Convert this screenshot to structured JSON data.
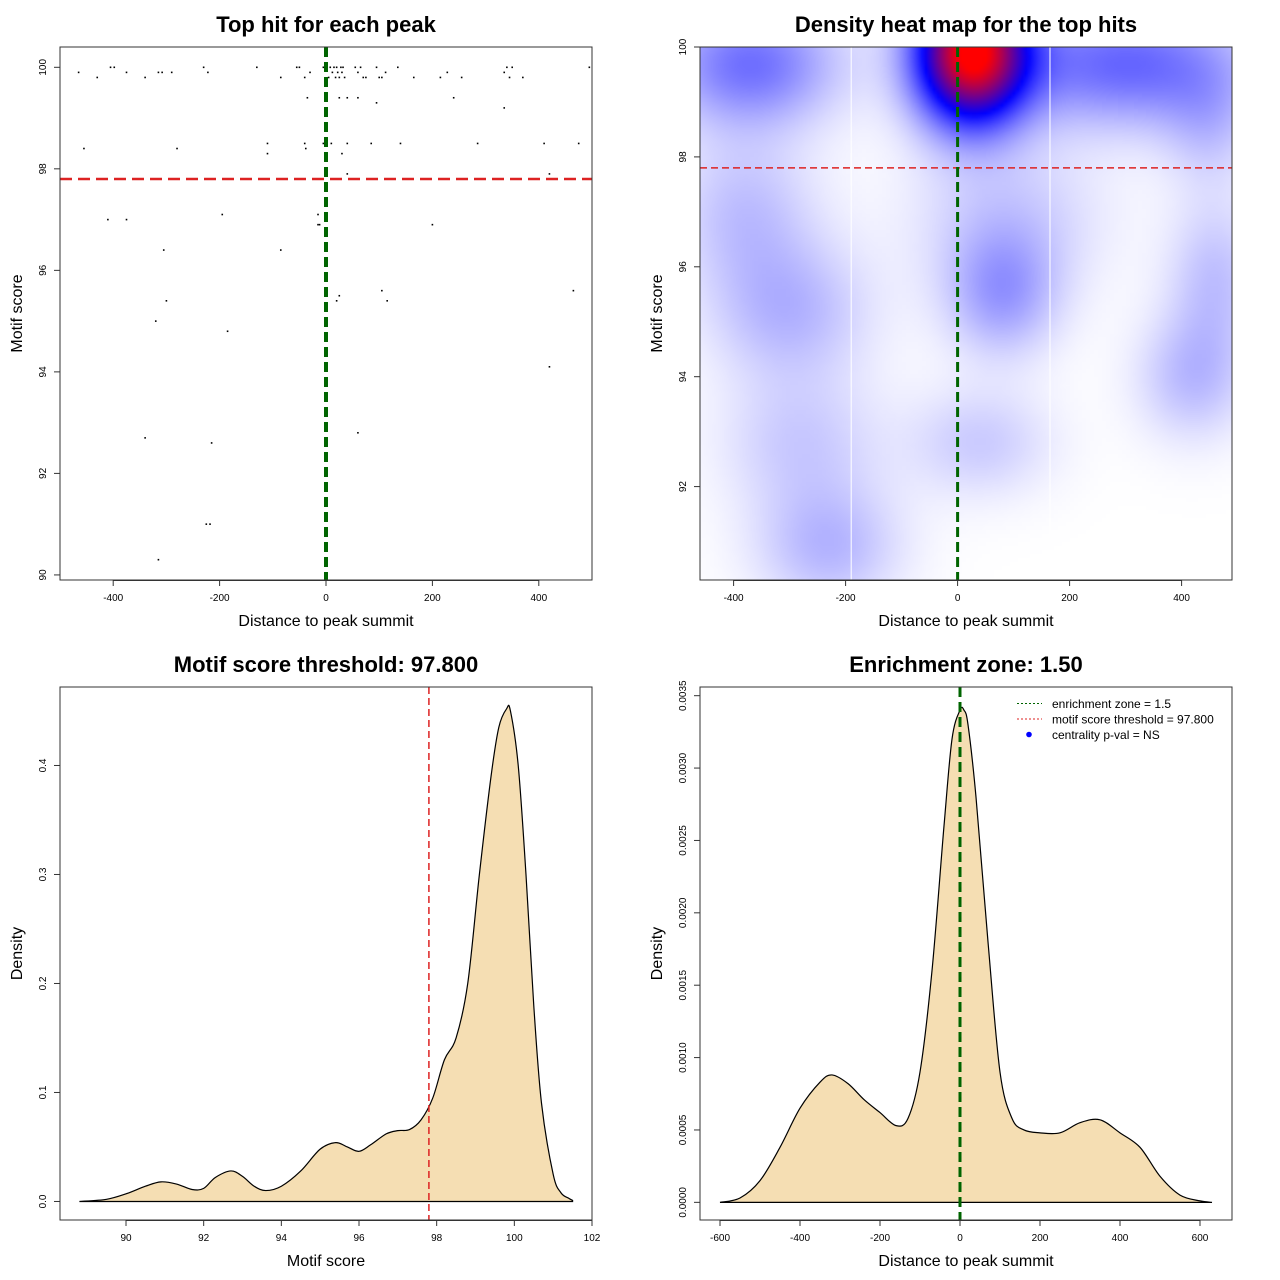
{
  "chart_data": [
    {
      "type": "scatter",
      "title": "Top hit for each peak",
      "xlabel": "Distance to peak summit",
      "ylabel": "Motif score",
      "xlim": [
        -500,
        500
      ],
      "ylim": [
        89.9,
        100.4
      ],
      "xticks": [
        -400,
        -200,
        0,
        200,
        400
      ],
      "yticks": [
        90,
        92,
        94,
        96,
        98,
        100
      ],
      "vlines": [
        {
          "x": 0,
          "color": "#006400",
          "style": "dashed"
        }
      ],
      "hlines": [
        {
          "y": 97.8,
          "color": "#dd2222",
          "style": "dashed"
        }
      ],
      "points": [
        [
          -465,
          99.9
        ],
        [
          -430,
          99.8
        ],
        [
          -405,
          100
        ],
        [
          -398,
          100
        ],
        [
          -375,
          99.9
        ],
        [
          -340,
          99.8
        ],
        [
          -315,
          99.9
        ],
        [
          -308,
          99.9
        ],
        [
          -290,
          99.9
        ],
        [
          -230,
          100
        ],
        [
          -222,
          99.9
        ],
        [
          -130,
          100
        ],
        [
          -85,
          99.8
        ],
        [
          -55,
          100
        ],
        [
          -50,
          100
        ],
        [
          -40,
          99.8
        ],
        [
          -30,
          99.9
        ],
        [
          -5,
          100
        ],
        [
          0,
          100
        ],
        [
          5,
          99.8
        ],
        [
          8,
          100
        ],
        [
          12,
          99.9
        ],
        [
          15,
          100
        ],
        [
          18,
          99.8
        ],
        [
          20,
          100
        ],
        [
          22,
          99.9
        ],
        [
          25,
          99.8
        ],
        [
          28,
          100
        ],
        [
          30,
          99.9
        ],
        [
          32,
          100
        ],
        [
          35,
          99.8
        ],
        [
          55,
          100
        ],
        [
          60,
          99.9
        ],
        [
          65,
          100
        ],
        [
          70,
          99.8
        ],
        [
          75,
          99.8
        ],
        [
          95,
          100
        ],
        [
          100,
          99.8
        ],
        [
          105,
          99.8
        ],
        [
          112,
          99.9
        ],
        [
          135,
          100
        ],
        [
          165,
          99.8
        ],
        [
          215,
          99.8
        ],
        [
          228,
          99.9
        ],
        [
          255,
          99.8
        ],
        [
          335,
          99.9
        ],
        [
          340,
          100
        ],
        [
          345,
          99.8
        ],
        [
          350,
          100
        ],
        [
          370,
          99.8
        ],
        [
          495,
          100
        ],
        [
          -35,
          99.4
        ],
        [
          25,
          99.4
        ],
        [
          40,
          99.4
        ],
        [
          60,
          99.4
        ],
        [
          95,
          99.3
        ],
        [
          240,
          99.4
        ],
        [
          335,
          99.2
        ],
        [
          -455,
          98.4
        ],
        [
          -280,
          98.4
        ],
        [
          -110,
          98.5
        ],
        [
          -110,
          98.3
        ],
        [
          -40,
          98.5
        ],
        [
          -38,
          98.4
        ],
        [
          -5,
          98.5
        ],
        [
          -2,
          98.3
        ],
        [
          10,
          98.5
        ],
        [
          30,
          98.3
        ],
        [
          40,
          98.5
        ],
        [
          85,
          98.5
        ],
        [
          140,
          98.5
        ],
        [
          285,
          98.5
        ],
        [
          410,
          98.5
        ],
        [
          475,
          98.5
        ],
        [
          40,
          97.9
        ],
        [
          420,
          97.9
        ],
        [
          -410,
          97.0
        ],
        [
          -375,
          97.0
        ],
        [
          -195,
          97.1
        ],
        [
          -15,
          97.1
        ],
        [
          -15,
          96.9
        ],
        [
          -12,
          96.9
        ],
        [
          200,
          96.9
        ],
        [
          -305,
          96.4
        ],
        [
          -85,
          96.4
        ],
        [
          -300,
          95.4
        ],
        [
          20,
          95.4
        ],
        [
          25,
          95.5
        ],
        [
          105,
          95.6
        ],
        [
          115,
          95.4
        ],
        [
          465,
          95.6
        ],
        [
          -320,
          95.0
        ],
        [
          -185,
          94.8
        ],
        [
          420,
          94.1
        ],
        [
          -340,
          92.7
        ],
        [
          60,
          92.8
        ],
        [
          -215,
          92.6
        ],
        [
          -225,
          91.0
        ],
        [
          -218,
          91.0
        ],
        [
          -315,
          90.3
        ]
      ]
    },
    {
      "type": "heatmap",
      "title": "Density heat map for the top hits",
      "xlabel": "Distance to peak summit",
      "ylabel": "Motif score",
      "xlim": [
        -460,
        490
      ],
      "ylim": [
        90.3,
        100
      ],
      "xticks": [
        -400,
        -200,
        0,
        200,
        400
      ],
      "yticks": [
        92,
        94,
        96,
        98,
        100
      ],
      "colors": [
        "#ffffff",
        "#0000ff",
        "#ff0000"
      ],
      "vlines": [
        {
          "x": 0,
          "color": "#006400",
          "style": "dashed"
        },
        {
          "x": -190,
          "color": "#ffffff",
          "style": "solid"
        },
        {
          "x": 165,
          "color": "#ffffff",
          "style": "solid"
        }
      ],
      "hlines": [
        {
          "y": 97.8,
          "color": "#dd2222",
          "style": "dashed"
        }
      ],
      "blobs": [
        {
          "x": 25,
          "y": 99.9,
          "sx": 70,
          "sy": 0.9,
          "w": 1.0
        },
        {
          "x": -370,
          "y": 99.7,
          "sx": 110,
          "sy": 0.8,
          "w": 0.28
        },
        {
          "x": 300,
          "y": 99.7,
          "sx": 150,
          "sy": 0.8,
          "w": 0.3
        },
        {
          "x": 450,
          "y": 98.6,
          "sx": 60,
          "sy": 0.8,
          "w": 0.1
        },
        {
          "x": -380,
          "y": 97.0,
          "sx": 90,
          "sy": 1.0,
          "w": 0.12
        },
        {
          "x": 90,
          "y": 96.9,
          "sx": 120,
          "sy": 1.0,
          "w": 0.1
        },
        {
          "x": -300,
          "y": 95.2,
          "sx": 100,
          "sy": 0.9,
          "w": 0.14
        },
        {
          "x": 80,
          "y": 95.5,
          "sx": 70,
          "sy": 0.8,
          "w": 0.18
        },
        {
          "x": 460,
          "y": 95.8,
          "sx": 60,
          "sy": 1.0,
          "w": 0.12
        },
        {
          "x": 420,
          "y": 94.0,
          "sx": 70,
          "sy": 0.8,
          "w": 0.13
        },
        {
          "x": -280,
          "y": 92.8,
          "sx": 100,
          "sy": 0.9,
          "w": 0.1
        },
        {
          "x": 40,
          "y": 92.8,
          "sx": 90,
          "sy": 0.7,
          "w": 0.1
        },
        {
          "x": -230,
          "y": 90.9,
          "sx": 90,
          "sy": 0.8,
          "w": 0.14
        }
      ]
    },
    {
      "type": "area",
      "title": "Motif score threshold: 97.800",
      "xlabel": "Motif score",
      "ylabel": "Density",
      "xlim": [
        88.3,
        102
      ],
      "ylim": [
        -0.017,
        0.472
      ],
      "xticks": [
        90,
        92,
        94,
        96,
        98,
        100,
        102
      ],
      "yticks": [
        0.0,
        0.1,
        0.2,
        0.3,
        0.4
      ],
      "ytick_labels": [
        "0.0",
        "0.1",
        "0.2",
        "0.3",
        "0.4"
      ],
      "fill": "#f5deb3",
      "vlines": [
        {
          "x": 97.8,
          "color": "#dd2222",
          "style": "dashed"
        }
      ],
      "x": [
        88.8,
        89.5,
        90.0,
        90.5,
        90.9,
        91.3,
        91.7,
        92.0,
        92.3,
        92.7,
        93.0,
        93.3,
        93.6,
        94.0,
        94.5,
        95.0,
        95.4,
        95.7,
        96.0,
        96.3,
        96.7,
        97.0,
        97.3,
        97.6,
        97.9,
        98.2,
        98.5,
        98.8,
        99.1,
        99.4,
        99.6,
        99.8,
        99.9,
        100.1,
        100.3,
        100.5,
        100.7,
        101.0,
        101.2,
        101.4,
        101.5
      ],
      "y": [
        0.0,
        0.002,
        0.007,
        0.014,
        0.018,
        0.016,
        0.011,
        0.012,
        0.022,
        0.028,
        0.023,
        0.014,
        0.01,
        0.014,
        0.028,
        0.048,
        0.054,
        0.05,
        0.046,
        0.052,
        0.062,
        0.065,
        0.066,
        0.075,
        0.095,
        0.13,
        0.15,
        0.2,
        0.3,
        0.39,
        0.435,
        0.452,
        0.45,
        0.4,
        0.3,
        0.18,
        0.09,
        0.025,
        0.008,
        0.003,
        0.001
      ]
    },
    {
      "type": "area",
      "title": "Enrichment zone: 1.50",
      "xlabel": "Distance to peak summit",
      "ylabel": "Density",
      "xlim": [
        -650,
        680
      ],
      "ylim": [
        -0.000122,
        0.00356
      ],
      "xticks": [
        -600,
        -400,
        -200,
        0,
        200,
        400,
        600
      ],
      "yticks": [
        0.0,
        0.0005,
        0.001,
        0.0015,
        0.002,
        0.0025,
        0.003,
        0.0035
      ],
      "ytick_labels": [
        "0.0000",
        "0.0005",
        "0.0010",
        "0.0015",
        "0.0020",
        "0.0025",
        "0.0030",
        "0.0035"
      ],
      "fill": "#f5deb3",
      "vlines": [
        {
          "x": 0,
          "color": "#006400",
          "style": "dashed"
        }
      ],
      "x": [
        -600,
        -550,
        -500,
        -450,
        -400,
        -350,
        -320,
        -280,
        -240,
        -200,
        -160,
        -130,
        -100,
        -70,
        -40,
        -20,
        0,
        10,
        20,
        40,
        70,
        100,
        130,
        160,
        200,
        250,
        300,
        350,
        400,
        450,
        500,
        550,
        600,
        630
      ],
      "y": [
        0.0,
        3e-05,
        0.00015,
        0.00038,
        0.00065,
        0.00083,
        0.00088,
        0.00082,
        0.00071,
        0.00062,
        0.00053,
        0.00058,
        0.0009,
        0.0016,
        0.0026,
        0.0032,
        0.0034,
        0.0034,
        0.0033,
        0.0028,
        0.0018,
        0.0009,
        0.00058,
        0.0005,
        0.00048,
        0.00048,
        0.00055,
        0.00057,
        0.00048,
        0.00038,
        0.00018,
        5e-05,
        1e-05,
        0.0
      ],
      "legend": {
        "position": "top-right",
        "entries": [
          {
            "label": "enrichment zone = 1.5",
            "color": "#006400",
            "marker": "dotted-line"
          },
          {
            "label": "motif score threshold = 97.800",
            "color": "#dd2222",
            "marker": "dotted-line"
          },
          {
            "label": "centrality p-val = NS",
            "color": "#0000ff",
            "marker": "dot"
          }
        ]
      }
    }
  ]
}
